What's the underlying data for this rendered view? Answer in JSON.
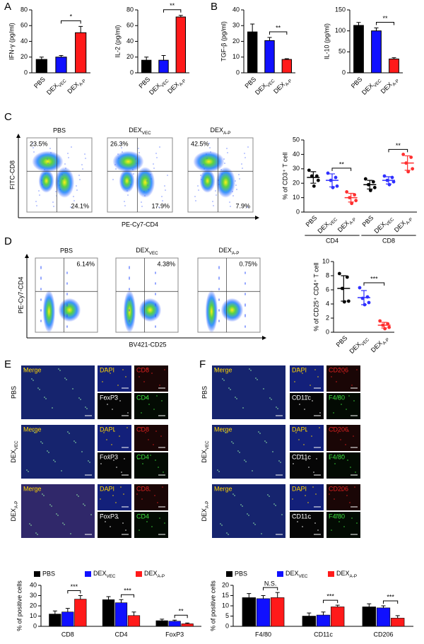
{
  "panel_labels": [
    "A",
    "B",
    "C",
    "D",
    "E",
    "F"
  ],
  "chart_data": [
    {
      "type": "bar",
      "ylabel": "IFN-γ (pg/ml)",
      "categories": [
        "PBS",
        "DEXVEC",
        "DEXA-P"
      ],
      "values": [
        17,
        20,
        51
      ],
      "errors": [
        3,
        2,
        8
      ],
      "colors": [
        "#000000",
        "#1010ff",
        "#ff1a1a"
      ],
      "ylim": [
        0,
        80
      ],
      "yticks": [
        0,
        20,
        40,
        60,
        80
      ],
      "annotations": [
        {
          "text": "*",
          "between": [
            1,
            2
          ]
        }
      ]
    },
    {
      "type": "bar",
      "ylabel": "IL-2 (pg/ml)",
      "categories": [
        "PBS",
        "DEXVEC",
        "DEXA-P"
      ],
      "values": [
        16,
        16,
        71
      ],
      "errors": [
        4,
        6,
        2
      ],
      "colors": [
        "#000000",
        "#1010ff",
        "#ff1a1a"
      ],
      "ylim": [
        0,
        80
      ],
      "yticks": [
        0,
        20,
        40,
        60,
        80
      ],
      "annotations": [
        {
          "text": "**",
          "between": [
            1,
            2
          ]
        }
      ]
    },
    {
      "type": "bar",
      "ylabel": "TGF-β (pg/ml)",
      "categories": [
        "PBS",
        "DEXVEC",
        "DEXA-P"
      ],
      "values": [
        26,
        20.5,
        8.5
      ],
      "errors": [
        5,
        2,
        0.5
      ],
      "colors": [
        "#000000",
        "#1010ff",
        "#ff1a1a"
      ],
      "ylim": [
        0,
        40
      ],
      "yticks": [
        0,
        10,
        20,
        30,
        40
      ],
      "annotations": [
        {
          "text": "**",
          "between": [
            1,
            2
          ]
        }
      ]
    },
    {
      "type": "bar",
      "ylabel": "IL-10 (pg/ml)",
      "categories": [
        "PBS",
        "DEXVEC",
        "DEXA-P"
      ],
      "values": [
        113,
        100,
        33
      ],
      "errors": [
        7,
        7,
        3
      ],
      "colors": [
        "#000000",
        "#1010ff",
        "#ff1a1a"
      ],
      "ylim": [
        0,
        150
      ],
      "yticks": [
        0,
        50,
        100,
        150
      ],
      "annotations": [
        {
          "text": "**",
          "between": [
            1,
            2
          ]
        }
      ]
    },
    {
      "type": "dot",
      "ylabel": "% of CD3⁺ T cell",
      "categories": [
        "PBS",
        "DEXVEC",
        "DEXA-P",
        "PBS",
        "DEXVEC",
        "DEXA-P"
      ],
      "colors": [
        "#000000",
        "#3030ff",
        "#ff3030",
        "#000000",
        "#3030ff",
        "#ff3030"
      ],
      "points": [
        [
          29,
          25,
          25,
          22,
          18
        ],
        [
          27,
          24,
          22,
          18,
          17
        ],
        [
          14,
          12,
          10,
          8,
          6
        ],
        [
          23,
          21,
          19,
          17,
          15
        ],
        [
          25,
          24,
          22,
          21,
          19
        ],
        [
          40,
          38,
          34,
          30,
          28
        ]
      ],
      "means": [
        24,
        22,
        10,
        19,
        22,
        34
      ],
      "sd": [
        4,
        4.5,
        3,
        3,
        2.5,
        5
      ],
      "ylim": [
        0,
        50
      ],
      "yticks": [
        0,
        10,
        20,
        30,
        40,
        50
      ],
      "groups": [
        {
          "name": "CD4",
          "span": [
            0,
            2
          ]
        },
        {
          "name": "CD8",
          "span": [
            3,
            5
          ]
        }
      ],
      "annotations": [
        {
          "text": "**",
          "between": [
            1,
            2
          ]
        },
        {
          "text": "**",
          "between": [
            4,
            5
          ]
        }
      ]
    },
    {
      "type": "dot",
      "ylabel": "% of CD25⁺ CD4⁺ T cell",
      "categories": [
        "PBS",
        "DEXVEC",
        "DEXA-P"
      ],
      "colors": [
        "#000000",
        "#3030ff",
        "#ff3030"
      ],
      "points": [
        [
          8.3,
          7.8,
          6.2,
          4.4,
          4.3
        ],
        [
          6.3,
          5.0,
          4.8,
          4.2,
          3.9
        ],
        [
          1.6,
          1.2,
          1.0,
          0.7,
          0.5
        ]
      ],
      "means": [
        6.2,
        4.9,
        1.0
      ],
      "sd": [
        1.8,
        1.0,
        0.4
      ],
      "ylim": [
        0,
        10
      ],
      "yticks": [
        0,
        2,
        4,
        6,
        8,
        10
      ],
      "annotations": [
        {
          "text": "***",
          "between": [
            1,
            2
          ]
        }
      ]
    },
    {
      "type": "grouped-bar",
      "ylabel": "% of positive cells",
      "categories": [
        "CD8",
        "CD4",
        "FoxP3"
      ],
      "series": [
        {
          "name": "PBS",
          "color": "#000000",
          "values": [
            12,
            26,
            5.5
          ],
          "errors": [
            3,
            3,
            1.5
          ]
        },
        {
          "name": "DEXVEC",
          "color": "#1010ff",
          "values": [
            14,
            23,
            5
          ],
          "errors": [
            3.5,
            3,
            1
          ]
        },
        {
          "name": "DEXA-P",
          "color": "#ff1a1a",
          "values": [
            26.5,
            10.5,
            2.5
          ],
          "errors": [
            3.5,
            3.5,
            0.8
          ]
        }
      ],
      "ylim": [
        0,
        40
      ],
      "yticks": [
        0,
        10,
        20,
        30,
        40
      ],
      "annotations": [
        {
          "text": "***",
          "category": 0,
          "between": [
            1,
            2
          ]
        },
        {
          "text": "***",
          "category": 1,
          "between": [
            1,
            2
          ]
        },
        {
          "text": "**",
          "category": 2,
          "between": [
            1,
            2
          ]
        }
      ]
    },
    {
      "type": "grouped-bar",
      "ylabel": "% of positive cells",
      "categories": [
        "F4/80",
        "CD11c",
        "CD206"
      ],
      "series": [
        {
          "name": "PBS",
          "color": "#000000",
          "values": [
            14,
            5,
            9.5
          ],
          "errors": [
            2,
            1.5,
            1.5
          ]
        },
        {
          "name": "DEXVEC",
          "color": "#1010ff",
          "values": [
            13.5,
            5.5,
            9
          ],
          "errors": [
            1.5,
            1.5,
            1
          ]
        },
        {
          "name": "DEXA-P",
          "color": "#ff1a1a",
          "values": [
            14,
            9.5,
            4
          ],
          "errors": [
            2.5,
            0.8,
            1.2
          ]
        }
      ],
      "ylim": [
        0,
        20
      ],
      "yticks": [
        0,
        5,
        10,
        15,
        20
      ],
      "annotations": [
        {
          "text": "N.S.",
          "category": 0,
          "between": [
            1,
            2
          ]
        },
        {
          "text": "***",
          "category": 1,
          "between": [
            1,
            2
          ]
        },
        {
          "text": "***",
          "category": 2,
          "between": [
            1,
            2
          ]
        }
      ]
    }
  ],
  "flow_panels": [
    {
      "x_label": "PE-Cy7-CD4",
      "y_label": "FITC-CD8",
      "plots": [
        {
          "title": "PBS",
          "labels": [
            "23.5%",
            "24.1%"
          ]
        },
        {
          "title": "DEXVEC",
          "labels": [
            "26.3%",
            "17.9%"
          ]
        },
        {
          "title": "DEXA-P",
          "labels": [
            "42.5%",
            "7.9%"
          ]
        }
      ]
    },
    {
      "x_label": "BV421-CD25",
      "y_label": "PE-Cy7-CD4",
      "plots": [
        {
          "title": "PBS",
          "labels": [
            "6.14%"
          ]
        },
        {
          "title": "DEXVEC",
          "labels": [
            "4.38%"
          ]
        },
        {
          "title": "DEXA-P",
          "labels": [
            "0.75%"
          ]
        }
      ]
    }
  ],
  "image_panels": [
    {
      "rows": [
        "PBS",
        "DEXVEC",
        "DEXA-P"
      ],
      "tiles": [
        "Merge",
        "DAPI",
        "CD8",
        "FoxP3",
        "CD4"
      ]
    },
    {
      "rows": [
        "PBS",
        "DEXVEC",
        "DEXA-P"
      ],
      "tiles": [
        "Merge",
        "DAPI",
        "CD206",
        "CD11c",
        "F4/80"
      ]
    }
  ]
}
